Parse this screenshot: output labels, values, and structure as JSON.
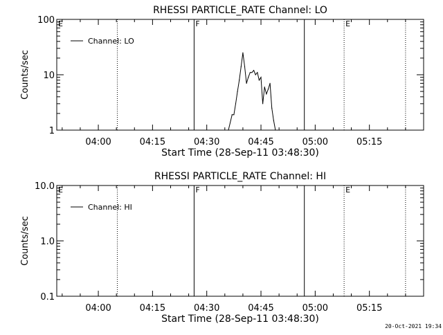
{
  "footer_timestamp": "20-Oct-2021 19:34",
  "chart_data": [
    {
      "type": "line",
      "title": "RHESSI PARTICLE_RATE Channel: LO",
      "xlabel": "Start Time (28-Sep-11 03:48:30)",
      "ylabel": "Counts/sec",
      "y_scale": "log",
      "ylim": [
        1,
        100
      ],
      "y_ticks": [
        {
          "value": 1,
          "label": "1"
        },
        {
          "value": 10,
          "label": "10"
        },
        {
          "value": 100,
          "label": "100"
        }
      ],
      "xlim": [
        "03:48:30",
        "05:30:00"
      ],
      "x_ticks": [
        "04:00",
        "04:15",
        "04:30",
        "04:45",
        "05:00",
        "05:15"
      ],
      "legend": {
        "entries": [
          "Channel: LO"
        ],
        "placement": "top-left"
      },
      "grid": false,
      "markers": [
        {
          "time": "03:48:30",
          "style": "solid",
          "label": "E"
        },
        {
          "time": "04:05:15",
          "style": "dotted",
          "label": ""
        },
        {
          "time": "04:26:30",
          "style": "solid",
          "label": "F"
        },
        {
          "time": "04:57:00",
          "style": "solid",
          "label": ""
        },
        {
          "time": "05:08:00",
          "style": "dotted",
          "label": "E"
        },
        {
          "time": "05:25:00",
          "style": "dotted",
          "label": ""
        }
      ],
      "series": [
        {
          "name": "Channel: LO",
          "x": [
            "04:36:00",
            "04:37:00",
            "04:37:30",
            "04:38:00",
            "04:38:30",
            "04:39:00",
            "04:39:30",
            "04:40:00",
            "04:40:30",
            "04:41:00",
            "04:41:30",
            "04:42:00",
            "04:42:30",
            "04:43:00",
            "04:43:30",
            "04:44:00",
            "04:44:30",
            "04:45:00",
            "04:45:30",
            "04:46:00",
            "04:46:30",
            "04:47:00",
            "04:47:30",
            "04:48:00",
            "04:48:30",
            "04:49:00",
            "04:49:30",
            "04:50:00"
          ],
          "values": [
            1,
            1.9,
            1.9,
            3,
            5,
            8,
            14,
            25,
            14,
            7,
            9,
            11,
            11,
            12,
            10,
            11,
            8,
            9,
            3,
            6,
            4.5,
            5.5,
            7,
            2.5,
            1.5,
            1,
            1,
            1
          ]
        }
      ]
    },
    {
      "type": "line",
      "title": "RHESSI PARTICLE_RATE Channel: HI",
      "xlabel": "Start Time (28-Sep-11 03:48:30)",
      "ylabel": "Counts/sec",
      "y_scale": "log",
      "ylim": [
        0.1,
        10
      ],
      "y_ticks": [
        {
          "value": 0.1,
          "label": "0.1"
        },
        {
          "value": 1,
          "label": "1.0"
        },
        {
          "value": 10,
          "label": "10.0"
        }
      ],
      "xlim": [
        "03:48:30",
        "05:30:00"
      ],
      "x_ticks": [
        "04:00",
        "04:15",
        "04:30",
        "04:45",
        "05:00",
        "05:15"
      ],
      "legend": {
        "entries": [
          "Channel: HI"
        ],
        "placement": "top-left"
      },
      "grid": false,
      "markers": [
        {
          "time": "03:48:30",
          "style": "solid",
          "label": "E"
        },
        {
          "time": "04:05:15",
          "style": "dotted",
          "label": ""
        },
        {
          "time": "04:26:30",
          "style": "solid",
          "label": "F"
        },
        {
          "time": "04:57:00",
          "style": "solid",
          "label": ""
        },
        {
          "time": "05:08:00",
          "style": "dotted",
          "label": "E"
        },
        {
          "time": "05:25:00",
          "style": "dotted",
          "label": ""
        }
      ],
      "series": [
        {
          "name": "Channel: HI",
          "x": [],
          "values": []
        }
      ]
    }
  ]
}
